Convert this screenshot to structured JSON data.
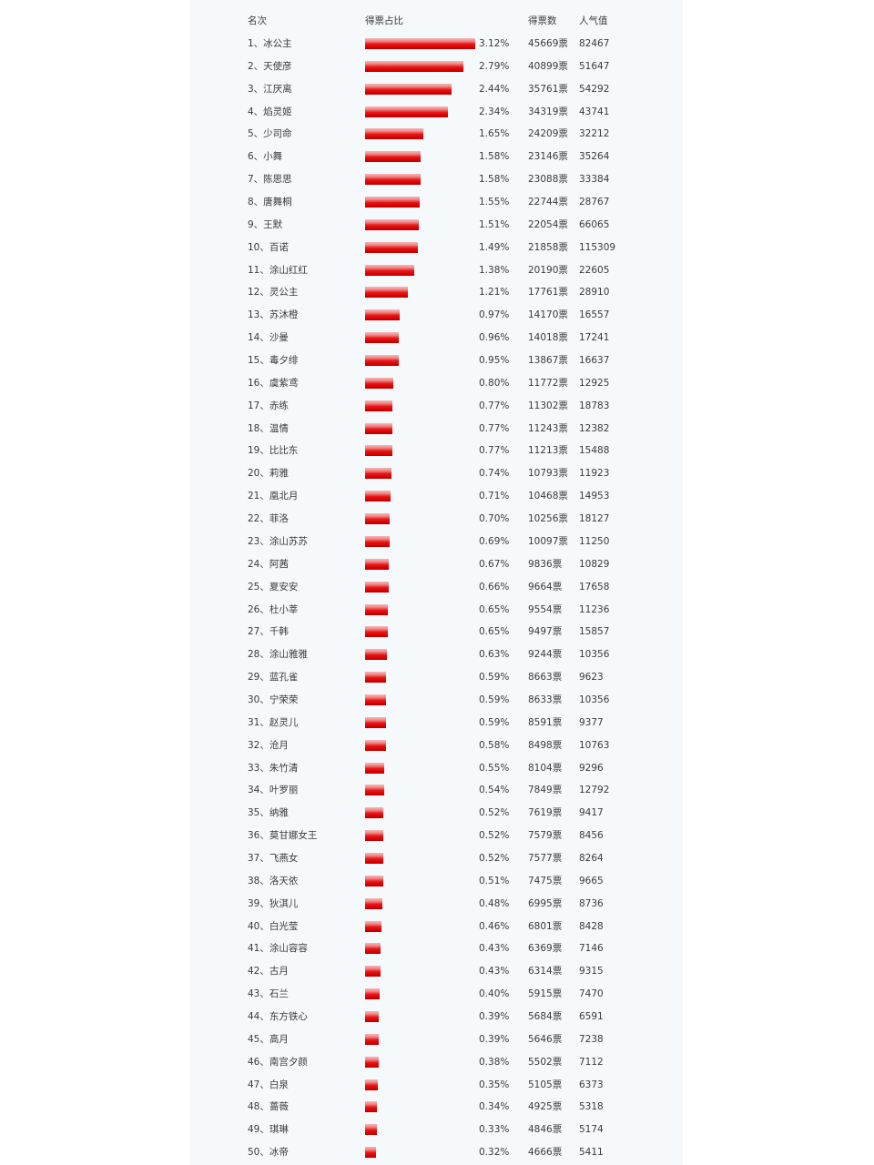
{
  "headers": {
    "rank_name": "名次",
    "share": "得票占比",
    "votes": "得票数",
    "popularity": "人气值"
  },
  "bar_color": "#e01010",
  "vote_unit": "票",
  "chart_data": {
    "type": "bar",
    "orientation": "horizontal",
    "columns": [
      "名次",
      "得票占比",
      "得票数",
      "人气值"
    ],
    "rows": [
      {
        "rank": 1,
        "name": "冰公主",
        "pct": 3.12,
        "votes": 45669,
        "pop": 82467
      },
      {
        "rank": 2,
        "name": "天使彦",
        "pct": 2.79,
        "votes": 40899,
        "pop": 51647
      },
      {
        "rank": 3,
        "name": "江厌离",
        "pct": 2.44,
        "votes": 35761,
        "pop": 54292
      },
      {
        "rank": 4,
        "name": "焰灵姬",
        "pct": 2.34,
        "votes": 34319,
        "pop": 43741
      },
      {
        "rank": 5,
        "name": "少司命",
        "pct": 1.65,
        "votes": 24209,
        "pop": 32212
      },
      {
        "rank": 6,
        "name": "小舞",
        "pct": 1.58,
        "votes": 23146,
        "pop": 35264
      },
      {
        "rank": 7,
        "name": "陈思思",
        "pct": 1.58,
        "votes": 23088,
        "pop": 33384
      },
      {
        "rank": 8,
        "name": "唐舞桐",
        "pct": 1.55,
        "votes": 22744,
        "pop": 28767
      },
      {
        "rank": 9,
        "name": "王默",
        "pct": 1.51,
        "votes": 22054,
        "pop": 66065
      },
      {
        "rank": 10,
        "name": "百诺",
        "pct": 1.49,
        "votes": 21858,
        "pop": 115309
      },
      {
        "rank": 11,
        "name": "涂山红红",
        "pct": 1.38,
        "votes": 20190,
        "pop": 22605
      },
      {
        "rank": 12,
        "name": "灵公主",
        "pct": 1.21,
        "votes": 17761,
        "pop": 28910
      },
      {
        "rank": 13,
        "name": "苏沐橙",
        "pct": 0.97,
        "votes": 14170,
        "pop": 16557
      },
      {
        "rank": 14,
        "name": "沙曼",
        "pct": 0.96,
        "votes": 14018,
        "pop": 17241
      },
      {
        "rank": 15,
        "name": "毒夕绯",
        "pct": 0.95,
        "votes": 13867,
        "pop": 16637
      },
      {
        "rank": 16,
        "name": "虞紫鸢",
        "pct": 0.8,
        "votes": 11772,
        "pop": 12925
      },
      {
        "rank": 17,
        "name": "赤练",
        "pct": 0.77,
        "votes": 11302,
        "pop": 18783
      },
      {
        "rank": 18,
        "name": "温情",
        "pct": 0.77,
        "votes": 11243,
        "pop": 12382
      },
      {
        "rank": 19,
        "name": "比比东",
        "pct": 0.77,
        "votes": 11213,
        "pop": 15488
      },
      {
        "rank": 20,
        "name": "莉雅",
        "pct": 0.74,
        "votes": 10793,
        "pop": 11923
      },
      {
        "rank": 21,
        "name": "凰北月",
        "pct": 0.71,
        "votes": 10468,
        "pop": 14953
      },
      {
        "rank": 22,
        "name": "菲洛",
        "pct": 0.7,
        "votes": 10256,
        "pop": 18127
      },
      {
        "rank": 23,
        "name": "涂山苏苏",
        "pct": 0.69,
        "votes": 10097,
        "pop": 11250
      },
      {
        "rank": 24,
        "name": "阿茜",
        "pct": 0.67,
        "votes": 9836,
        "pop": 10829
      },
      {
        "rank": 25,
        "name": "夏安安",
        "pct": 0.66,
        "votes": 9664,
        "pop": 17658
      },
      {
        "rank": 26,
        "name": "杜小莘",
        "pct": 0.65,
        "votes": 9554,
        "pop": 11236
      },
      {
        "rank": 27,
        "name": "千韩",
        "pct": 0.65,
        "votes": 9497,
        "pop": 15857
      },
      {
        "rank": 28,
        "name": "涂山雅雅",
        "pct": 0.63,
        "votes": 9244,
        "pop": 10356
      },
      {
        "rank": 29,
        "name": "蓝孔雀",
        "pct": 0.59,
        "votes": 8663,
        "pop": 9623
      },
      {
        "rank": 30,
        "name": "宁荣荣",
        "pct": 0.59,
        "votes": 8633,
        "pop": 10356
      },
      {
        "rank": 31,
        "name": "赵灵儿",
        "pct": 0.59,
        "votes": 8591,
        "pop": 9377
      },
      {
        "rank": 32,
        "name": "沧月",
        "pct": 0.58,
        "votes": 8498,
        "pop": 10763
      },
      {
        "rank": 33,
        "name": "朱竹清",
        "pct": 0.55,
        "votes": 8104,
        "pop": 9296
      },
      {
        "rank": 34,
        "name": "叶罗丽",
        "pct": 0.54,
        "votes": 7849,
        "pop": 12792
      },
      {
        "rank": 35,
        "name": "纳雅",
        "pct": 0.52,
        "votes": 7619,
        "pop": 9417
      },
      {
        "rank": 36,
        "name": "莫甘娜女王",
        "pct": 0.52,
        "votes": 7579,
        "pop": 8456
      },
      {
        "rank": 37,
        "name": "飞燕女",
        "pct": 0.52,
        "votes": 7577,
        "pop": 8264
      },
      {
        "rank": 38,
        "name": "洛天依",
        "pct": 0.51,
        "votes": 7475,
        "pop": 9665
      },
      {
        "rank": 39,
        "name": "狄淇儿",
        "pct": 0.48,
        "votes": 6995,
        "pop": 8736
      },
      {
        "rank": 40,
        "name": "白光莹",
        "pct": 0.46,
        "votes": 6801,
        "pop": 8428
      },
      {
        "rank": 41,
        "name": "涂山容容",
        "pct": 0.43,
        "votes": 6369,
        "pop": 7146
      },
      {
        "rank": 42,
        "name": "古月",
        "pct": 0.43,
        "votes": 6314,
        "pop": 9315
      },
      {
        "rank": 43,
        "name": "石兰",
        "pct": 0.4,
        "votes": 5915,
        "pop": 7470
      },
      {
        "rank": 44,
        "name": "东方铁心",
        "pct": 0.39,
        "votes": 5684,
        "pop": 6591
      },
      {
        "rank": 45,
        "name": "高月",
        "pct": 0.39,
        "votes": 5646,
        "pop": 7238
      },
      {
        "rank": 46,
        "name": "南宫夕颜",
        "pct": 0.38,
        "votes": 5502,
        "pop": 7112
      },
      {
        "rank": 47,
        "name": "白泉",
        "pct": 0.35,
        "votes": 5105,
        "pop": 6373
      },
      {
        "rank": 48,
        "name": "蔷薇",
        "pct": 0.34,
        "votes": 4925,
        "pop": 5318
      },
      {
        "rank": 49,
        "name": "琪琳",
        "pct": 0.33,
        "votes": 4846,
        "pop": 5174
      },
      {
        "rank": 50,
        "name": "冰帝",
        "pct": 0.32,
        "votes": 4666,
        "pop": 5411
      }
    ]
  }
}
